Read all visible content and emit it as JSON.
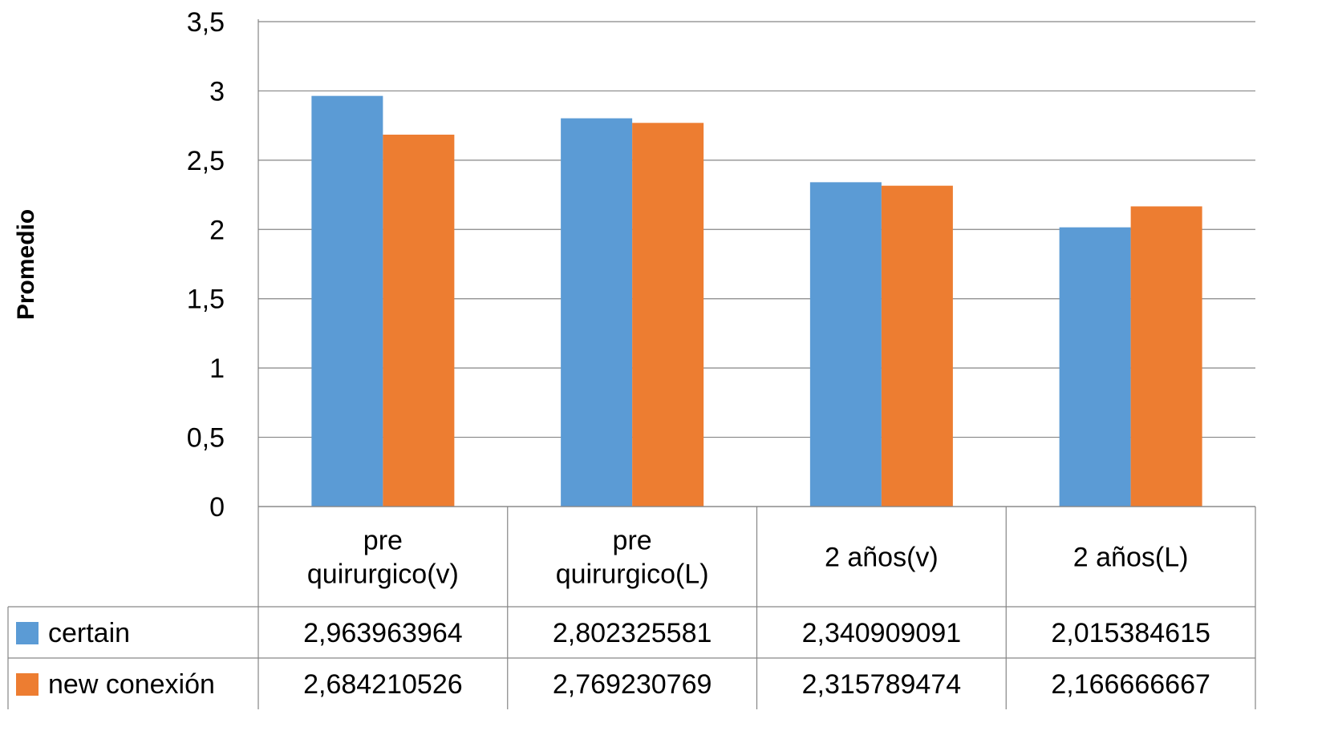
{
  "chart_data": {
    "type": "bar",
    "ylabel": "Promedio",
    "xlabel": "",
    "ylim": [
      0,
      3.5
    ],
    "yticks": [
      "0",
      "0,5",
      "1",
      "1,5",
      "2",
      "2,5",
      "3",
      "3,5"
    ],
    "grid": true,
    "legend": "data-table",
    "categories": [
      [
        "pre",
        "quirurgico(v)"
      ],
      [
        "pre",
        "quirurgico(L)"
      ],
      [
        "2 años(v)"
      ],
      [
        "2 años(L)"
      ]
    ],
    "series": [
      {
        "name": "certain",
        "color": "#5b9bd5",
        "values": [
          2.963963964,
          2.802325581,
          2.340909091,
          2.015384615
        ],
        "labels": [
          "2,963963964",
          "2,802325581",
          "2,340909091",
          "2,015384615"
        ]
      },
      {
        "name": "new conexión",
        "color": "#ed7d31",
        "values": [
          2.684210526,
          2.769230769,
          2.315789474,
          2.166666667
        ],
        "labels": [
          "2,684210526",
          "2,769230769",
          "2,315789474",
          "2,166666667"
        ]
      }
    ]
  }
}
